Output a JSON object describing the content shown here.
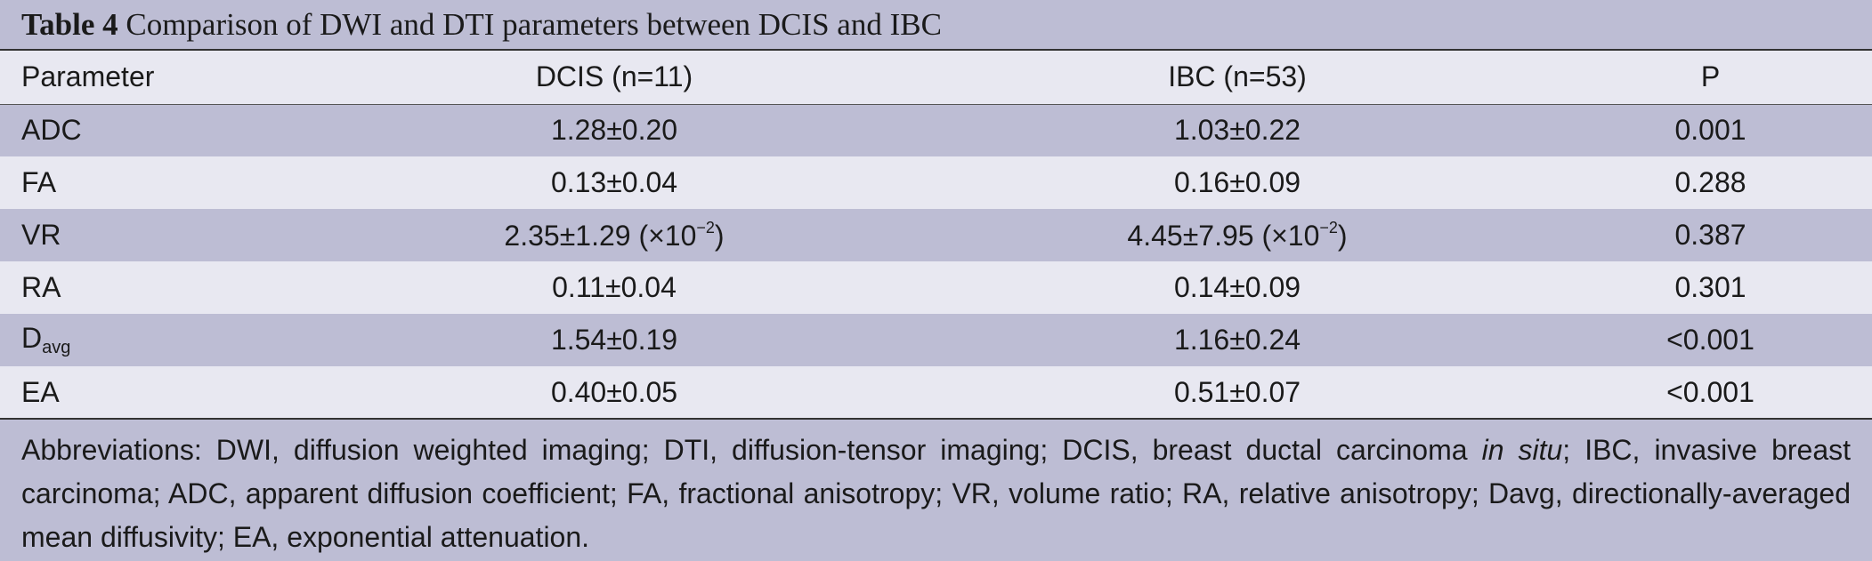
{
  "title": {
    "label": "Table 4",
    "text": "Comparison of DWI and DTI parameters between DCIS and IBC"
  },
  "table": {
    "headers": [
      "Parameter",
      "DCIS (n=11)",
      "IBC (n=53)",
      "P"
    ],
    "rows": [
      {
        "param": "ADC",
        "dcis": "1.28±0.20",
        "ibc": "1.03±0.22",
        "p": "0.001"
      },
      {
        "param": "FA",
        "dcis": "0.13±0.04",
        "ibc": "0.16±0.09",
        "p": "0.288"
      },
      {
        "param": "VR",
        "dcis": "2.35±1.29 (×10",
        "dcis_exp": "−2",
        "dcis_close": ")",
        "ibc": "4.45±7.95 (×10",
        "ibc_exp": "−2",
        "ibc_close": ")",
        "p": "0.387"
      },
      {
        "param": "RA",
        "dcis": "0.11±0.04",
        "ibc": "0.14±0.09",
        "p": "0.301"
      },
      {
        "param": "D",
        "param_sub": "avg",
        "dcis": "1.54±0.19",
        "ibc": "1.16±0.24",
        "p": "<0.001"
      },
      {
        "param": "EA",
        "dcis": "0.40±0.05",
        "ibc": "0.51±0.07",
        "p": "<0.001"
      }
    ]
  },
  "footnote": {
    "part1": "Abbreviations: DWI, diffusion weighted imaging; DTI, diffusion-tensor imaging; DCIS, breast ductal carcinoma ",
    "italic": "in situ",
    "part2": "; IBC, invasive breast carcinoma; ADC, apparent diffusion coefficient; FA, fractional anisotropy; VR, volume ratio; RA, relative anisotropy; Davg, directionally-averaged mean diffusivity; EA, exponential attenuation."
  },
  "colors": {
    "band_dark": "#bdbdd4",
    "band_light": "#e8e8f1",
    "rule": "#333333"
  }
}
